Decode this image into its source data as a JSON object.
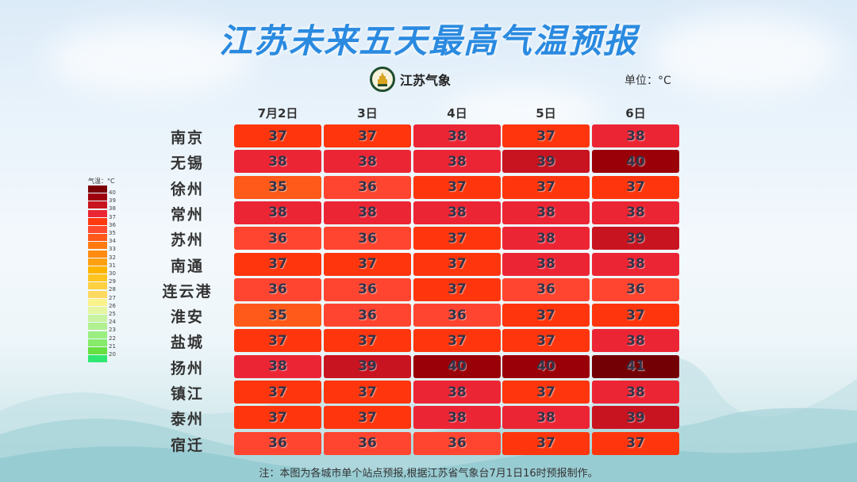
{
  "title": "江苏未来五天最高气温预报",
  "logo": {
    "text": "江苏气象",
    "icon": "jiangsu-meteorology-emblem"
  },
  "unit": "单位：°C",
  "footnote": "注：本图为各城市单个站点预报,根据江苏省气象台7月1日16时预报制作。",
  "legend": {
    "title": "气温：°C",
    "labels": [
      "40",
      "39",
      "38",
      "37",
      "36",
      "35",
      "34",
      "33",
      "32",
      "31",
      "30",
      "29",
      "28",
      "27",
      "26",
      "25",
      "24",
      "23",
      "22",
      "21",
      "20"
    ],
    "swatches": [
      "#7a0006",
      "#9e000e",
      "#c8141f",
      "#ea2535",
      "#ff3a10",
      "#ff4a2e",
      "#ff5a1a",
      "#ff7a10",
      "#ff8c10",
      "#ffa010",
      "#ffb400",
      "#ffc420",
      "#ffd040",
      "#ffd860",
      "#fbf28a",
      "#e4f7a0",
      "#c8f3a0",
      "#b0f090",
      "#9aee80",
      "#86ea6a",
      "#66e040",
      "#30e870"
    ]
  },
  "chart_data": {
    "type": "table",
    "title": "江苏未来五天最高气温预报",
    "unit": "°C",
    "columns": [
      "7月2日",
      "3日",
      "4日",
      "5日",
      "6日"
    ],
    "rows": [
      {
        "city": "南京",
        "values": [
          37,
          37,
          38,
          37,
          38
        ]
      },
      {
        "city": "无锡",
        "values": [
          38,
          38,
          38,
          39,
          40
        ]
      },
      {
        "city": "徐州",
        "values": [
          35,
          36,
          37,
          37,
          37
        ]
      },
      {
        "city": "常州",
        "values": [
          38,
          38,
          38,
          38,
          38
        ]
      },
      {
        "city": "苏州",
        "values": [
          36,
          36,
          37,
          38,
          39
        ]
      },
      {
        "city": "南通",
        "values": [
          37,
          37,
          37,
          38,
          38
        ]
      },
      {
        "city": "连云港",
        "values": [
          36,
          36,
          37,
          36,
          36
        ]
      },
      {
        "city": "淮安",
        "values": [
          35,
          36,
          36,
          37,
          37
        ]
      },
      {
        "city": "盐城",
        "values": [
          37,
          37,
          37,
          37,
          38
        ]
      },
      {
        "city": "扬州",
        "values": [
          38,
          39,
          40,
          40,
          41
        ]
      },
      {
        "city": "镇江",
        "values": [
          37,
          37,
          38,
          37,
          38
        ]
      },
      {
        "city": "泰州",
        "values": [
          37,
          37,
          38,
          38,
          39
        ]
      },
      {
        "city": "宿迁",
        "values": [
          36,
          36,
          36,
          37,
          37
        ]
      }
    ],
    "color_scale": {
      "35": "#ff5a1a",
      "36": "#ff4530",
      "37": "#ff360d",
      "38": "#ec2535",
      "39": "#c81420",
      "40": "#9a0008",
      "41": "#730004"
    }
  }
}
